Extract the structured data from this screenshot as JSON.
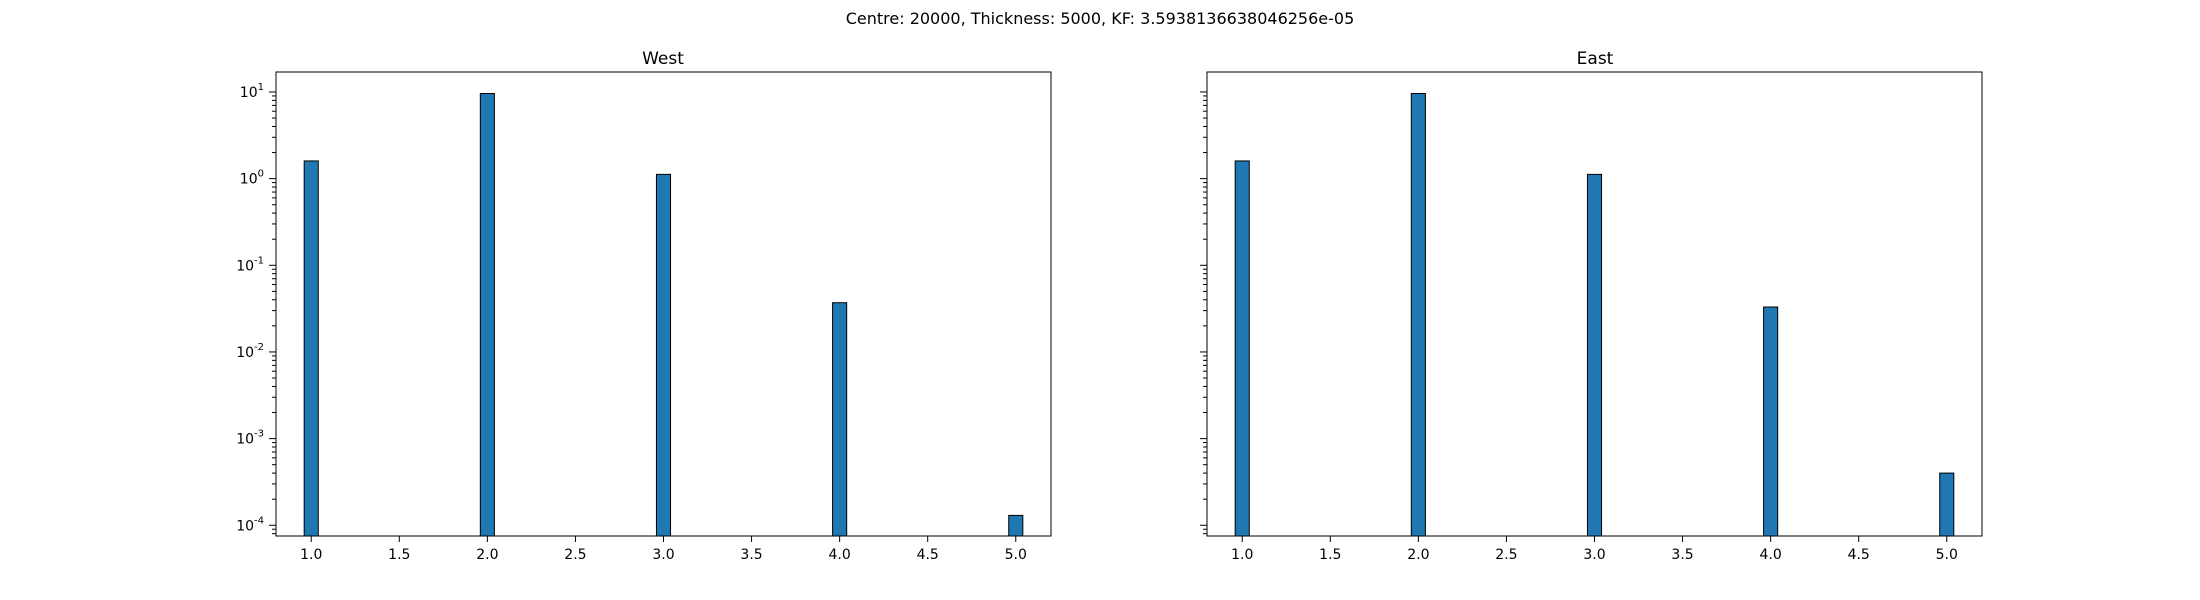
{
  "suptitle": "Centre: 20000, Thickness: 5000, KF: 3.5938136638046256e-05",
  "chart_data": [
    {
      "type": "bar",
      "title": "West",
      "xlabel": "",
      "ylabel": "",
      "yscale": "log",
      "xlim": [
        0.8,
        5.2
      ],
      "ylim": [
        7.52e-05,
        17
      ],
      "bar_width": 0.08,
      "x": [
        1.0,
        2.0,
        3.0,
        4.0,
        5.0
      ],
      "values": [
        1.6,
        9.6,
        1.12,
        0.037,
        0.00013
      ],
      "xticks": [
        "1.0",
        "1.5",
        "2.0",
        "2.5",
        "3.0",
        "3.5",
        "4.0",
        "4.5",
        "5.0"
      ],
      "ytick_labels": [
        "10",
        "10",
        "10",
        "10",
        "10",
        "10"
      ],
      "ytick_exponents": [
        "-4",
        "-3",
        "-2",
        "-1",
        "0",
        "1"
      ],
      "show_ytick_labels": true,
      "grid": false,
      "bar_color": "#1f77b4",
      "edge_color": "#000000"
    },
    {
      "type": "bar",
      "title": "East",
      "xlabel": "",
      "ylabel": "",
      "yscale": "log",
      "xlim": [
        0.8,
        5.2
      ],
      "ylim": [
        7.52e-05,
        17
      ],
      "bar_width": 0.08,
      "x": [
        1.0,
        2.0,
        3.0,
        4.0,
        5.0
      ],
      "values": [
        1.6,
        9.6,
        1.12,
        0.033,
        0.0004
      ],
      "xticks": [
        "1.0",
        "1.5",
        "2.0",
        "2.5",
        "3.0",
        "3.5",
        "4.0",
        "4.5",
        "5.0"
      ],
      "ytick_labels": [],
      "ytick_exponents": [],
      "show_ytick_labels": false,
      "grid": false,
      "bar_color": "#1f77b4",
      "edge_color": "#000000"
    }
  ]
}
